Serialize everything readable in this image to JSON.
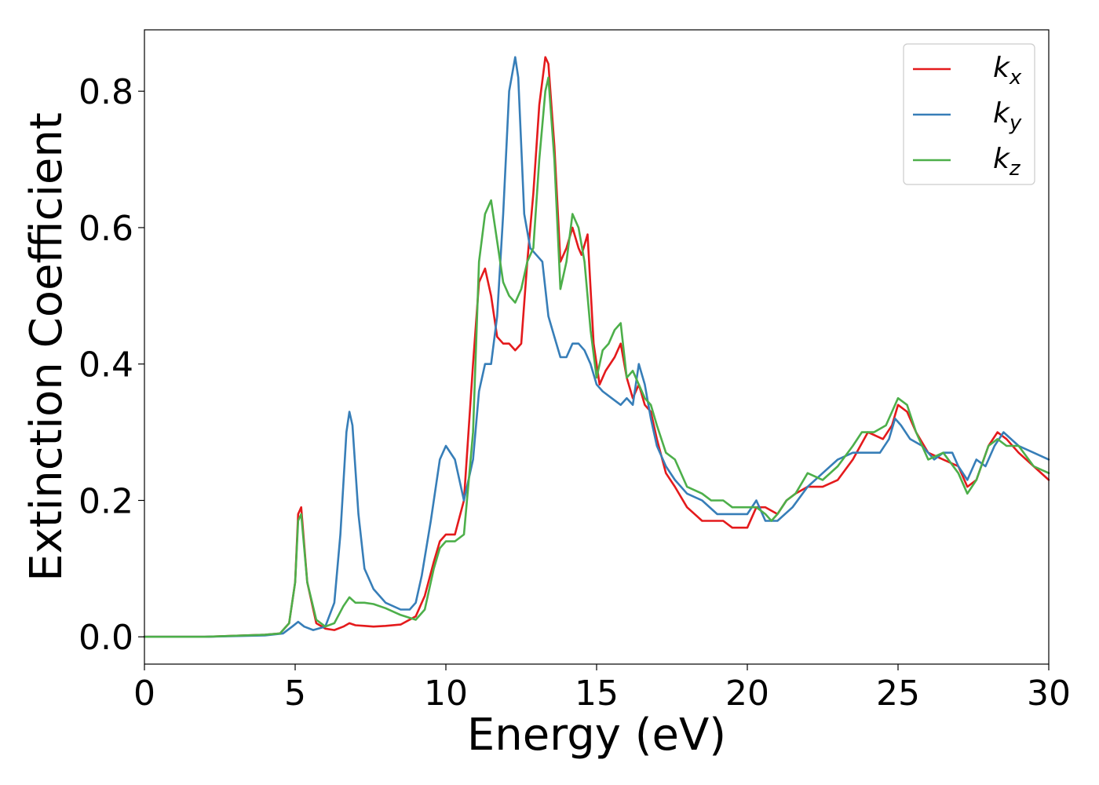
{
  "chart_data": {
    "type": "line",
    "xlabel": "Energy (eV)",
    "ylabel": "Extinction Coefficient",
    "xlim": [
      0,
      30
    ],
    "ylim": [
      -0.04,
      0.89
    ],
    "xticks": [
      0,
      5,
      10,
      15,
      20,
      25,
      30
    ],
    "xtick_labels": [
      "0",
      "5",
      "10",
      "15",
      "20",
      "25",
      "30"
    ],
    "yticks": [
      0.0,
      0.2,
      0.4,
      0.6,
      0.8
    ],
    "ytick_labels": [
      "0.0",
      "0.2",
      "0.4",
      "0.6",
      "0.8"
    ],
    "grid": false,
    "legend_position": "top-right",
    "series": [
      {
        "name": "k_x",
        "legend_base": "k",
        "legend_sub": "x",
        "color": "#e41a1c",
        "x": [
          0,
          2,
          4,
          4.5,
          4.8,
          5.0,
          5.1,
          5.2,
          5.4,
          5.7,
          6.0,
          6.3,
          6.6,
          6.8,
          7.0,
          7.3,
          7.6,
          8.0,
          8.5,
          9.0,
          9.3,
          9.6,
          9.8,
          10.0,
          10.3,
          10.6,
          10.9,
          11.1,
          11.3,
          11.5,
          11.7,
          11.9,
          12.1,
          12.3,
          12.5,
          12.7,
          12.9,
          13.1,
          13.3,
          13.4,
          13.6,
          13.8,
          14.0,
          14.2,
          14.4,
          14.5,
          14.7,
          14.9,
          15.1,
          15.3,
          15.6,
          15.8,
          16.0,
          16.2,
          16.4,
          16.6,
          16.8,
          17.0,
          17.3,
          17.6,
          18.0,
          18.5,
          18.8,
          19.2,
          19.5,
          20.0,
          20.3,
          20.6,
          21.0,
          21.3,
          21.6,
          22.0,
          22.5,
          23.0,
          23.5,
          24.0,
          24.5,
          24.8,
          25.0,
          25.3,
          25.6,
          26.0,
          26.5,
          27.0,
          27.3,
          27.6,
          28.0,
          28.3,
          28.6,
          29.0,
          29.5,
          30.0
        ],
        "y": [
          0.0,
          0.0,
          0.003,
          0.005,
          0.02,
          0.08,
          0.18,
          0.19,
          0.08,
          0.02,
          0.012,
          0.01,
          0.015,
          0.02,
          0.017,
          0.016,
          0.015,
          0.016,
          0.018,
          0.03,
          0.06,
          0.11,
          0.14,
          0.15,
          0.15,
          0.2,
          0.4,
          0.52,
          0.54,
          0.5,
          0.44,
          0.43,
          0.43,
          0.42,
          0.43,
          0.55,
          0.65,
          0.78,
          0.85,
          0.84,
          0.72,
          0.55,
          0.57,
          0.6,
          0.57,
          0.56,
          0.59,
          0.43,
          0.37,
          0.39,
          0.41,
          0.43,
          0.38,
          0.35,
          0.37,
          0.34,
          0.33,
          0.29,
          0.24,
          0.22,
          0.19,
          0.17,
          0.17,
          0.17,
          0.16,
          0.16,
          0.19,
          0.19,
          0.18,
          0.2,
          0.21,
          0.22,
          0.22,
          0.23,
          0.26,
          0.3,
          0.29,
          0.31,
          0.34,
          0.33,
          0.3,
          0.27,
          0.26,
          0.25,
          0.22,
          0.23,
          0.28,
          0.3,
          0.29,
          0.27,
          0.25,
          0.23
        ]
      },
      {
        "name": "k_y",
        "legend_base": "k",
        "legend_sub": "y",
        "color": "#377eb8",
        "x": [
          0,
          2,
          4,
          4.6,
          4.9,
          5.1,
          5.3,
          5.6,
          6.0,
          6.3,
          6.5,
          6.7,
          6.8,
          6.9,
          7.1,
          7.3,
          7.6,
          8.0,
          8.5,
          8.8,
          9.0,
          9.2,
          9.5,
          9.8,
          10.0,
          10.3,
          10.6,
          10.9,
          11.1,
          11.3,
          11.5,
          11.7,
          11.9,
          12.1,
          12.3,
          12.4,
          12.6,
          12.8,
          13.0,
          13.2,
          13.4,
          13.6,
          13.8,
          14.0,
          14.2,
          14.4,
          14.6,
          14.8,
          15.0,
          15.2,
          15.5,
          15.8,
          16.0,
          16.2,
          16.4,
          16.6,
          16.8,
          17.0,
          17.3,
          17.6,
          18.0,
          18.5,
          19.0,
          19.5,
          20.0,
          20.3,
          20.6,
          21.0,
          21.5,
          22.0,
          22.5,
          23.0,
          23.5,
          24.0,
          24.4,
          24.7,
          24.9,
          25.1,
          25.4,
          25.8,
          26.2,
          26.5,
          26.8,
          27.0,
          27.3,
          27.6,
          27.9,
          28.2,
          28.5,
          29.0,
          29.5,
          30.0
        ],
        "y": [
          0.0,
          0.0,
          0.002,
          0.005,
          0.015,
          0.022,
          0.015,
          0.01,
          0.015,
          0.05,
          0.15,
          0.3,
          0.33,
          0.31,
          0.18,
          0.1,
          0.07,
          0.05,
          0.04,
          0.04,
          0.05,
          0.09,
          0.17,
          0.26,
          0.28,
          0.26,
          0.2,
          0.26,
          0.36,
          0.4,
          0.4,
          0.47,
          0.62,
          0.8,
          0.85,
          0.82,
          0.62,
          0.57,
          0.56,
          0.55,
          0.47,
          0.44,
          0.41,
          0.41,
          0.43,
          0.43,
          0.42,
          0.4,
          0.37,
          0.36,
          0.35,
          0.34,
          0.35,
          0.34,
          0.4,
          0.37,
          0.32,
          0.28,
          0.25,
          0.23,
          0.21,
          0.2,
          0.18,
          0.18,
          0.18,
          0.2,
          0.17,
          0.17,
          0.19,
          0.22,
          0.24,
          0.26,
          0.27,
          0.27,
          0.27,
          0.29,
          0.32,
          0.31,
          0.29,
          0.28,
          0.26,
          0.27,
          0.27,
          0.25,
          0.23,
          0.26,
          0.25,
          0.28,
          0.3,
          0.28,
          0.27,
          0.26
        ]
      },
      {
        "name": "k_z",
        "legend_base": "k",
        "legend_sub": "z",
        "color": "#4daf4a",
        "x": [
          0,
          2,
          4,
          4.5,
          4.8,
          5.0,
          5.1,
          5.2,
          5.4,
          5.7,
          6.0,
          6.3,
          6.6,
          6.8,
          7.0,
          7.3,
          7.6,
          8.0,
          8.5,
          9.0,
          9.3,
          9.6,
          9.8,
          10.0,
          10.3,
          10.6,
          10.9,
          11.1,
          11.3,
          11.5,
          11.7,
          11.9,
          12.1,
          12.3,
          12.5,
          12.7,
          12.9,
          13.1,
          13.3,
          13.4,
          13.6,
          13.8,
          14.0,
          14.2,
          14.4,
          14.6,
          14.8,
          15.0,
          15.2,
          15.4,
          15.6,
          15.8,
          16.0,
          16.2,
          16.4,
          16.6,
          16.8,
          17.0,
          17.3,
          17.6,
          18.0,
          18.5,
          18.8,
          19.2,
          19.5,
          20.0,
          20.3,
          20.6,
          20.8,
          21.0,
          21.3,
          21.6,
          22.0,
          22.5,
          23.0,
          23.5,
          23.8,
          24.2,
          24.6,
          25.0,
          25.3,
          25.6,
          26.0,
          26.5,
          27.0,
          27.3,
          27.6,
          28.0,
          28.3,
          28.6,
          29.0,
          29.5,
          30.0
        ],
        "y": [
          0.0,
          0.0,
          0.003,
          0.005,
          0.02,
          0.08,
          0.17,
          0.18,
          0.08,
          0.025,
          0.015,
          0.02,
          0.045,
          0.058,
          0.05,
          0.05,
          0.048,
          0.042,
          0.032,
          0.025,
          0.04,
          0.1,
          0.13,
          0.14,
          0.14,
          0.15,
          0.3,
          0.55,
          0.62,
          0.64,
          0.58,
          0.52,
          0.5,
          0.49,
          0.51,
          0.55,
          0.57,
          0.7,
          0.8,
          0.82,
          0.7,
          0.51,
          0.55,
          0.62,
          0.6,
          0.55,
          0.45,
          0.38,
          0.42,
          0.43,
          0.45,
          0.46,
          0.38,
          0.39,
          0.37,
          0.35,
          0.34,
          0.31,
          0.27,
          0.26,
          0.22,
          0.21,
          0.2,
          0.2,
          0.19,
          0.19,
          0.19,
          0.18,
          0.17,
          0.18,
          0.2,
          0.21,
          0.24,
          0.23,
          0.25,
          0.28,
          0.3,
          0.3,
          0.31,
          0.35,
          0.34,
          0.3,
          0.26,
          0.27,
          0.24,
          0.21,
          0.23,
          0.28,
          0.29,
          0.28,
          0.28,
          0.25,
          0.24
        ]
      }
    ]
  }
}
